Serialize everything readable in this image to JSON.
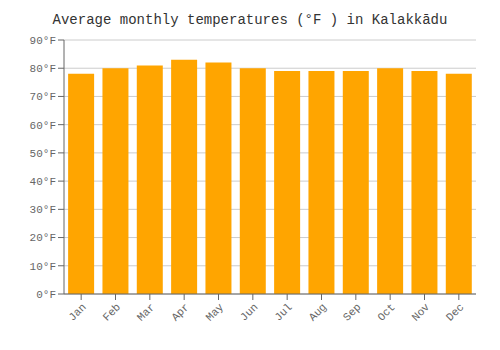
{
  "chart_data": {
    "type": "bar",
    "title": "Average monthly temperatures (°F ) in Kalakkādu",
    "categories": [
      "Jan",
      "Feb",
      "Mar",
      "Apr",
      "May",
      "Jun",
      "Jul",
      "Aug",
      "Sep",
      "Oct",
      "Nov",
      "Dec"
    ],
    "values": [
      78,
      80,
      81,
      83,
      82,
      80,
      79,
      79,
      79,
      80,
      79,
      78
    ],
    "color": "#FFA500",
    "ylim": [
      0,
      90
    ],
    "yticks": [
      {
        "value": 0,
        "label": "0°F"
      },
      {
        "value": 10,
        "label": "10°F"
      },
      {
        "value": 20,
        "label": "20°F"
      },
      {
        "value": 30,
        "label": "30°F"
      },
      {
        "value": 40,
        "label": "40°F"
      },
      {
        "value": 50,
        "label": "50°F"
      },
      {
        "value": 60,
        "label": "60°F"
      },
      {
        "value": 70,
        "label": "70°F"
      },
      {
        "value": 80,
        "label": "80°F"
      },
      {
        "value": 90,
        "label": "90°F"
      }
    ],
    "grid": true
  }
}
